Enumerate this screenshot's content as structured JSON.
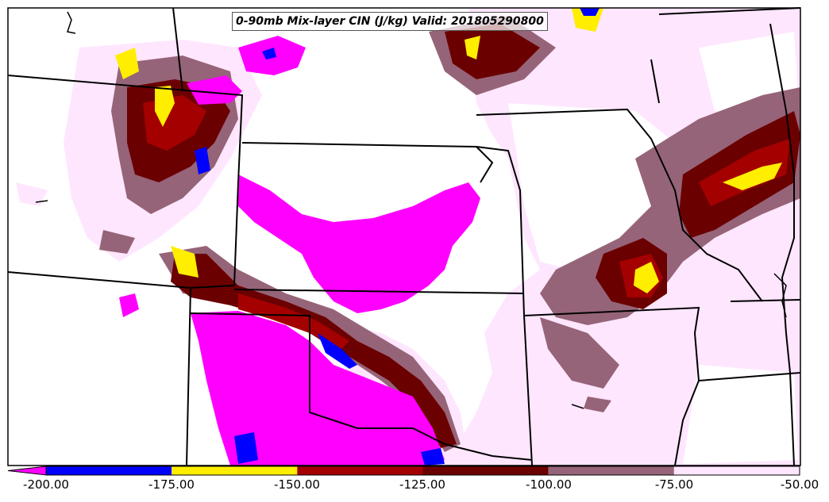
{
  "title": "0-90mb Mix-layer CIN (J/kg) Valid: 201805290800",
  "colorbar": {
    "ticks": [
      "-200.00",
      "-175.00",
      "-150.00",
      "-125.00",
      "-100.00",
      "-75.00",
      "-50.00"
    ],
    "bins": [
      {
        "range": [
          -200,
          -175
        ],
        "color": "#0000ff"
      },
      {
        "range": [
          -175,
          -150
        ],
        "color": "#ffee00"
      },
      {
        "range": [
          -150,
          -125
        ],
        "color": "#a50000"
      },
      {
        "range": [
          -125,
          -100
        ],
        "color": "#6b0000"
      },
      {
        "range": [
          -100,
          -75
        ],
        "color": "#966478"
      },
      {
        "range": [
          -75,
          -50
        ],
        "color": "#ffe6ff"
      }
    ],
    "under_color": "#ff00ff"
  },
  "colors": {
    "magenta": "#ff00ff",
    "blue": "#0000ff",
    "yellow": "#ffee00",
    "red": "#a50000",
    "darkred": "#6b0000",
    "mauve": "#966478",
    "pink": "#ffe6ff",
    "border": "#000000"
  }
}
